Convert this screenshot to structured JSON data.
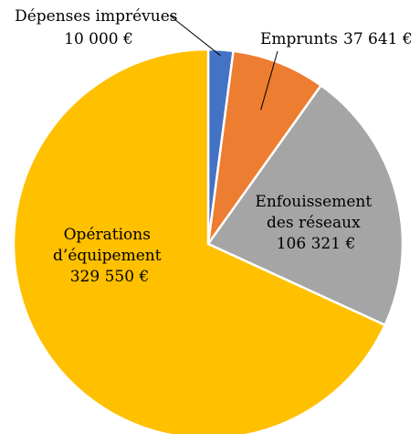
{
  "chart_data": {
    "type": "pie",
    "title": "",
    "slices": [
      {
        "label": "Dépenses imprévues",
        "value": 10000,
        "value_label": "10 000 €",
        "color": "#4472C4"
      },
      {
        "label": "Emprunts",
        "value": 37641,
        "value_label": "37 641 €",
        "color": "#ED7D31"
      },
      {
        "label": "Enfouissement des réseaux",
        "label_lines": [
          "Enfouissement",
          "des réseaux"
        ],
        "value": 106321,
        "value_label": "106 321 €",
        "color": "#A5A5A5"
      },
      {
        "label": "Opérations d’équipement",
        "label_lines": [
          "Opérations",
          "d’équipement"
        ],
        "value": 329550,
        "value_label": "329 550 €",
        "color": "#FFC000"
      }
    ],
    "start_angle_deg": 0,
    "direction": "clockwise",
    "legend": "none",
    "data_labels": "category-and-value"
  }
}
